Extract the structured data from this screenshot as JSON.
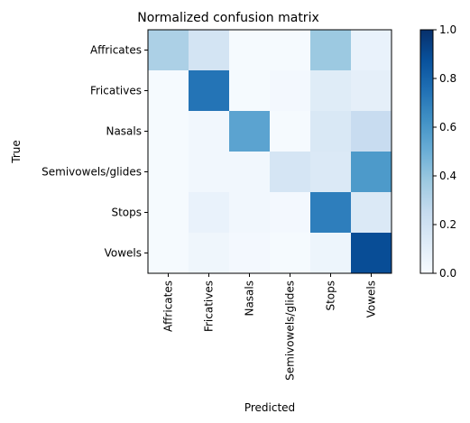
{
  "chart_data": {
    "type": "heatmap",
    "title": "Normalized confusion matrix",
    "xlabel": "Predicted",
    "ylabel": "True",
    "x_categories": [
      "Affricates",
      "Fricatives",
      "Nasals",
      "Semivowels/glides",
      "Stops",
      "Vowels"
    ],
    "y_categories": [
      "Affricates",
      "Fricatives",
      "Nasals",
      "Semivowels/glides",
      "Stops",
      "Vowels"
    ],
    "values": [
      [
        0.33,
        0.18,
        0.01,
        0.01,
        0.38,
        0.07
      ],
      [
        0.01,
        0.74,
        0.01,
        0.02,
        0.12,
        0.09
      ],
      [
        0.01,
        0.03,
        0.55,
        0.01,
        0.15,
        0.24
      ],
      [
        0.01,
        0.03,
        0.03,
        0.17,
        0.14,
        0.59
      ],
      [
        0.01,
        0.07,
        0.03,
        0.02,
        0.7,
        0.14
      ],
      [
        0.01,
        0.04,
        0.02,
        0.01,
        0.05,
        0.89
      ]
    ],
    "colormap": "Blues",
    "vmin": 0.0,
    "vmax": 1.0,
    "colorbar_ticks": [
      "0.0",
      "0.2",
      "0.4",
      "0.6",
      "0.8",
      "1.0"
    ],
    "colorbar_tick_values": [
      0.0,
      0.2,
      0.4,
      0.6,
      0.8,
      1.0
    ]
  }
}
